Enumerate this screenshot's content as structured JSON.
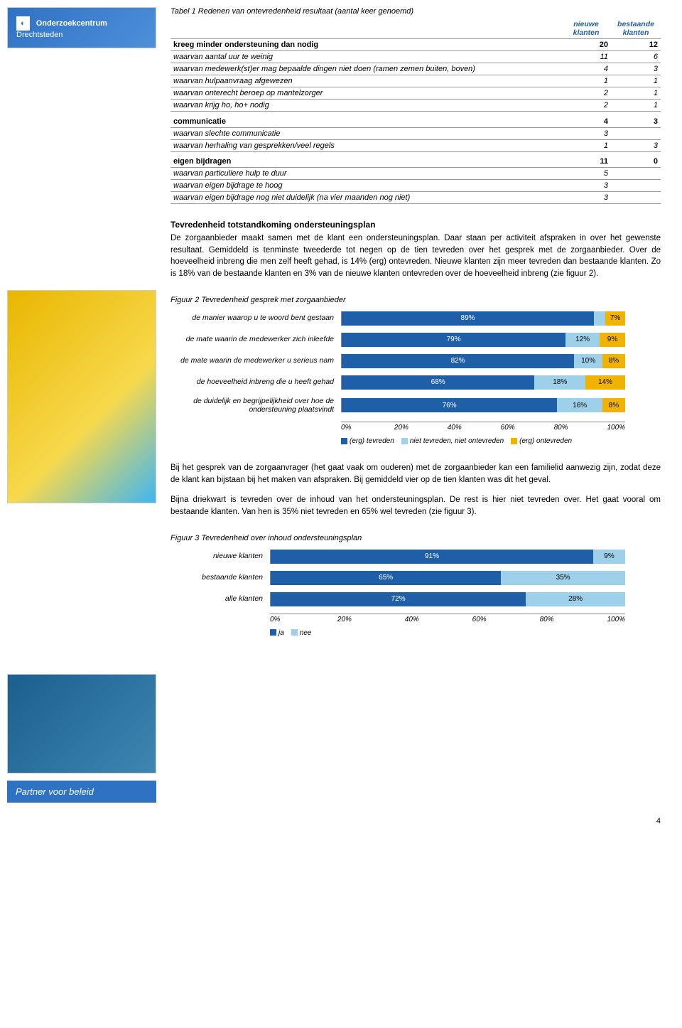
{
  "sidebar": {
    "logo_text": "Onderzoekcentrum",
    "logo_sub": "Drechtsteden",
    "footer": "Partner voor beleid"
  },
  "table1": {
    "caption": "Tabel 1    Redenen van ontevredenheid resultaat (aantal keer genoemd)",
    "col1": "nieuwe\nklanten",
    "col2": "bestaande\nklanten",
    "groups": [
      {
        "rows": [
          {
            "label": "kreeg minder ondersteuning dan nodig",
            "a": "20",
            "b": "12",
            "bold": true
          },
          {
            "label": "waarvan aantal uur te weinig",
            "a": "11",
            "b": "6",
            "italic": true
          },
          {
            "label": "waarvan medewerk(st)er mag bepaalde dingen niet doen (ramen zemen buiten, boven)",
            "a": "4",
            "b": "3",
            "italic": true
          },
          {
            "label": "waarvan hulpaanvraag afgewezen",
            "a": "1",
            "b": "1",
            "italic": true
          },
          {
            "label": "waarvan onterecht beroep op mantelzorger",
            "a": "2",
            "b": "1",
            "italic": true
          },
          {
            "label": "waarvan krijg ho, ho+ nodig",
            "a": "2",
            "b": "1",
            "italic": true
          }
        ]
      },
      {
        "rows": [
          {
            "label": "communicatie",
            "a": "4",
            "b": "3",
            "bold": true
          },
          {
            "label": "waarvan slechte communicatie",
            "a": "3",
            "b": "",
            "italic": true
          },
          {
            "label": "waarvan herhaling van gesprekken/veel regels",
            "a": "1",
            "b": "3",
            "italic": true
          }
        ]
      },
      {
        "rows": [
          {
            "label": "eigen bijdragen",
            "a": "11",
            "b": "0",
            "bold": true
          },
          {
            "label": "waarvan particuliere hulp te duur",
            "a": "5",
            "b": "",
            "italic": true
          },
          {
            "label": "waarvan eigen bijdrage te hoog",
            "a": "3",
            "b": "",
            "italic": true
          },
          {
            "label": "waarvan eigen bijdrage nog niet duidelijk (na vier maanden nog niet)",
            "a": "3",
            "b": "",
            "italic": true
          }
        ]
      }
    ]
  },
  "section1": {
    "heading": "Tevredenheid totstandkoming ondersteuningsplan",
    "para": "De zorgaanbieder maakt samen met de klant een ondersteuningsplan. Daar staan per activiteit afspraken in over het gewenste resultaat. Gemiddeld is tenminste tweederde tot negen op de tien tevreden over het gesprek met de zorgaanbieder. Over de hoeveelheid inbreng die men zelf heeft gehad, is 14% (erg) ontevreden. Nieuwe klanten zijn meer tevreden dan bestaande klanten. Zo is 18% van de bestaande klanten en 3% van de nieuwe klanten ontevreden over de hoeveelheid inbreng (zie figuur 2)."
  },
  "figure2": {
    "caption": "Figuur 2   Tevredenheid gesprek met zorgaanbieder",
    "colors": {
      "s1": "#1f5fa8",
      "s2": "#9ed0ea",
      "s3": "#f0b400"
    },
    "rows": [
      {
        "label": "de manier waarop u te woord bent gestaan",
        "v": [
          89,
          4,
          7
        ],
        "labels": [
          "89%",
          "",
          "7%"
        ]
      },
      {
        "label": "de mate waarin de medewerker zich inleefde",
        "v": [
          79,
          12,
          9
        ],
        "labels": [
          "79%",
          "12%",
          "9%"
        ]
      },
      {
        "label": "de mate waarin de medewerker u serieus  nam",
        "v": [
          82,
          10,
          8
        ],
        "labels": [
          "82%",
          "10%",
          "8%"
        ]
      },
      {
        "label": "de hoeveelheid inbreng die u heeft gehad",
        "v": [
          68,
          18,
          14
        ],
        "labels": [
          "68%",
          "18%",
          "14%"
        ]
      },
      {
        "label": "de duidelijk en begrijpelijkheid over hoe de ondersteuning plaatsvindt",
        "v": [
          76,
          16,
          8
        ],
        "labels": [
          "76%",
          "16%",
          "8%"
        ]
      }
    ],
    "axis": [
      "0%",
      "20%",
      "40%",
      "60%",
      "80%",
      "100%"
    ],
    "legend": [
      "(erg) tevreden",
      "niet tevreden, niet ontevreden",
      "(erg) ontevreden"
    ]
  },
  "section2": {
    "para1": "Bij het gesprek van de zorgaanvrager (het gaat vaak om ouderen) met de zorgaanbieder kan een familielid aanwezig zijn, zodat deze de klant kan bijstaan bij het maken van afspraken. Bij gemiddeld vier op de tien klanten was dit het geval.",
    "para2": "Bijna driekwart is tevreden over de inhoud van het ondersteuningsplan. De rest is hier niet tevreden over. Het gaat vooral om bestaande klanten. Van hen is 35% niet tevreden en 65% wel tevreden (zie figuur 3)."
  },
  "figure3": {
    "caption": "Figuur 3   Tevredenheid over inhoud ondersteuningsplan",
    "colors": {
      "s1": "#1f5fa8",
      "s2": "#9ed0ea"
    },
    "rows": [
      {
        "label": "nieuwe klanten",
        "v": [
          91,
          9
        ],
        "labels": [
          "91%",
          "9%"
        ]
      },
      {
        "label": "bestaande klanten",
        "v": [
          65,
          35
        ],
        "labels": [
          "65%",
          "35%"
        ]
      },
      {
        "label": "alle klanten",
        "v": [
          72,
          28
        ],
        "labels": [
          "72%",
          "28%"
        ]
      }
    ],
    "axis": [
      "0%",
      "20%",
      "40%",
      "60%",
      "80%",
      "100%"
    ],
    "legend": [
      "ja",
      "nee"
    ]
  },
  "page_num": "4"
}
